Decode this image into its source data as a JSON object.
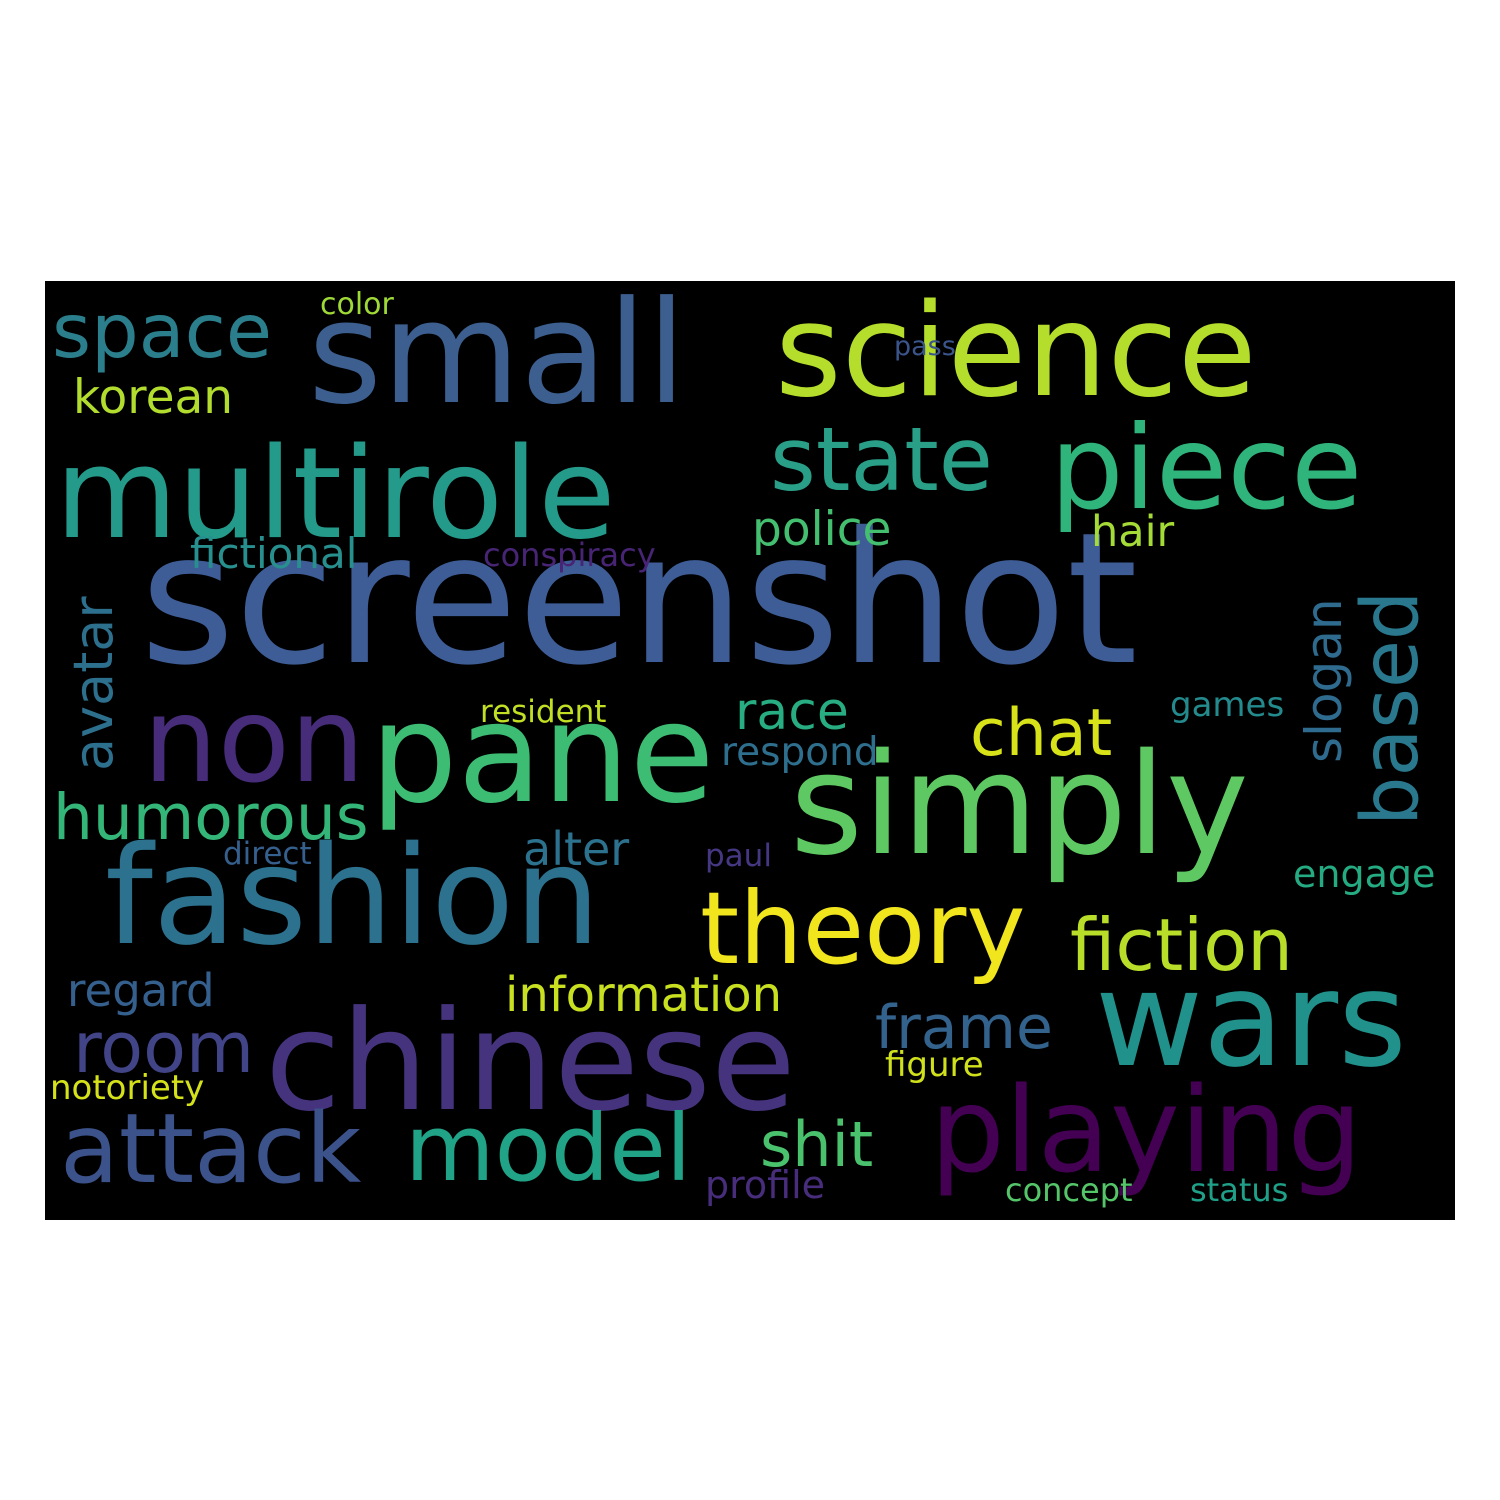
{
  "words": [
    {
      "text": "screenshot",
      "color": "#3e5d96"
    },
    {
      "text": "small",
      "color": "#3c5f8f"
    },
    {
      "text": "science",
      "color": "#b5dd2b"
    },
    {
      "text": "multirole",
      "color": "#249a8a"
    },
    {
      "text": "piece",
      "color": "#2fb47c"
    },
    {
      "text": "state",
      "color": "#2a9f88"
    },
    {
      "text": "space",
      "color": "#2b7f8d"
    },
    {
      "text": "korean",
      "color": "#b2dc2e"
    },
    {
      "text": "color",
      "color": "#9fd938"
    },
    {
      "text": "pass",
      "color": "#3b548c"
    },
    {
      "text": "police",
      "color": "#44bf70"
    },
    {
      "text": "hair",
      "color": "#a5db36"
    },
    {
      "text": "fictional",
      "color": "#278f8e"
    },
    {
      "text": "conspiracy",
      "color": "#482475"
    },
    {
      "text": "avatar",
      "color": "#2d708e"
    },
    {
      "text": "based",
      "color": "#2a788e"
    },
    {
      "text": "slogan",
      "color": "#2f6b8e"
    },
    {
      "text": "non",
      "color": "#472c7a"
    },
    {
      "text": "pane",
      "color": "#3dbc74"
    },
    {
      "text": "simply",
      "color": "#5ec962"
    },
    {
      "text": "chat",
      "color": "#d8e219"
    },
    {
      "text": "race",
      "color": "#27ad81"
    },
    {
      "text": "resident",
      "color": "#c2df23"
    },
    {
      "text": "games",
      "color": "#238a8d"
    },
    {
      "text": "respond",
      "color": "#2e6f8e"
    },
    {
      "text": "humorous",
      "color": "#34b679"
    },
    {
      "text": "alter",
      "color": "#2c728e"
    },
    {
      "text": "direct",
      "color": "#355f8d"
    },
    {
      "text": "paul",
      "color": "#453781"
    },
    {
      "text": "engage",
      "color": "#25ab82"
    },
    {
      "text": "fashion",
      "color": "#2c718e"
    },
    {
      "text": "theory",
      "color": "#f1e51d"
    },
    {
      "text": "fiction",
      "color": "#b8de29"
    },
    {
      "text": "wars",
      "color": "#21918c"
    },
    {
      "text": "regard",
      "color": "#355f8d"
    },
    {
      "text": "information",
      "color": "#c8e020"
    },
    {
      "text": "frame",
      "color": "#33628d"
    },
    {
      "text": "room",
      "color": "#414487"
    },
    {
      "text": "chinese",
      "color": "#46337e"
    },
    {
      "text": "figure",
      "color": "#d0e11c"
    },
    {
      "text": "notoriety",
      "color": "#d5e21a"
    },
    {
      "text": "playing",
      "color": "#440154"
    },
    {
      "text": "attack",
      "color": "#3b528b"
    },
    {
      "text": "model",
      "color": "#20a386"
    },
    {
      "text": "shit",
      "color": "#4ac16d"
    },
    {
      "text": "profile",
      "color": "#472d7b"
    },
    {
      "text": "concept",
      "color": "#54c568"
    },
    {
      "text": "status",
      "color": "#1fa088"
    }
  ]
}
